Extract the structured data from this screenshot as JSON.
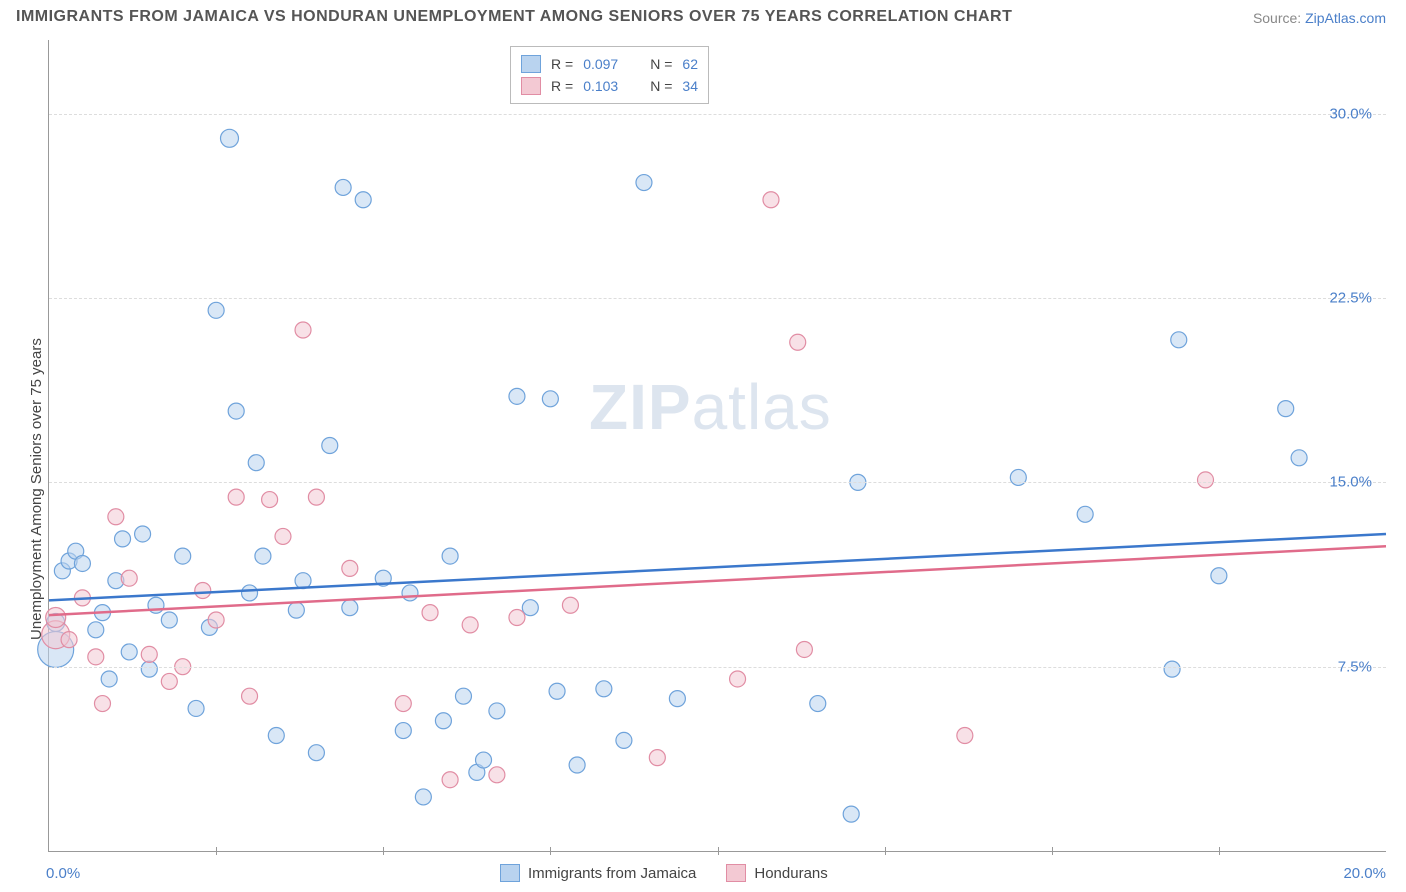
{
  "title": "IMMIGRANTS FROM JAMAICA VS HONDURAN UNEMPLOYMENT AMONG SENIORS OVER 75 YEARS CORRELATION CHART",
  "source_prefix": "Source: ",
  "source_name": "ZipAtlas.com",
  "ylabel": "Unemployment Among Seniors over 75 years",
  "watermark_zip": "ZIP",
  "watermark_atlas": "atlas",
  "chart": {
    "type": "scatter",
    "x_range": [
      0,
      20
    ],
    "y_range": [
      0,
      33
    ],
    "x_ticks_major": [
      0,
      20
    ],
    "x_ticks_minor": [
      2.5,
      5,
      7.5,
      10,
      12.5,
      15,
      17.5
    ],
    "x_tick_labels": {
      "0": "0.0%",
      "20": "20.0%"
    },
    "y_gridlines": [
      7.5,
      15,
      22.5,
      30
    ],
    "y_tick_labels": {
      "7.5": "7.5%",
      "15": "15.0%",
      "22.5": "22.5%",
      "30": "30.0%"
    },
    "background_color": "#ffffff",
    "grid_color": "#dddddd",
    "axis_color": "#999999",
    "tick_label_color": "#4a7fc9",
    "series": [
      {
        "name": "Immigrants from Jamaica",
        "fill_color": "#b9d3ef",
        "stroke_color": "#6fa3db",
        "line_color": "#3b78cc",
        "R": "0.097",
        "N": "62",
        "trend": {
          "x1": 0,
          "y1": 10.2,
          "x2": 20,
          "y2": 12.9
        },
        "points": [
          {
            "x": 0.1,
            "y": 8.2,
            "r": 18
          },
          {
            "x": 0.1,
            "y": 9.3,
            "r": 9
          },
          {
            "x": 0.2,
            "y": 11.4,
            "r": 8
          },
          {
            "x": 0.3,
            "y": 11.8,
            "r": 8
          },
          {
            "x": 0.4,
            "y": 12.2,
            "r": 8
          },
          {
            "x": 0.7,
            "y": 9.0,
            "r": 8
          },
          {
            "x": 0.8,
            "y": 9.7,
            "r": 8
          },
          {
            "x": 0.9,
            "y": 7.0,
            "r": 8
          },
          {
            "x": 1.0,
            "y": 11.0,
            "r": 8
          },
          {
            "x": 1.1,
            "y": 12.7,
            "r": 8
          },
          {
            "x": 1.2,
            "y": 8.1,
            "r": 8
          },
          {
            "x": 1.4,
            "y": 12.9,
            "r": 8
          },
          {
            "x": 1.5,
            "y": 7.4,
            "r": 8
          },
          {
            "x": 1.6,
            "y": 10.0,
            "r": 8
          },
          {
            "x": 1.8,
            "y": 9.4,
            "r": 8
          },
          {
            "x": 2.0,
            "y": 12.0,
            "r": 8
          },
          {
            "x": 2.2,
            "y": 5.8,
            "r": 8
          },
          {
            "x": 2.4,
            "y": 9.1,
            "r": 8
          },
          {
            "x": 2.5,
            "y": 22.0,
            "r": 8
          },
          {
            "x": 2.7,
            "y": 29.0,
            "r": 9
          },
          {
            "x": 2.8,
            "y": 17.9,
            "r": 8
          },
          {
            "x": 3.0,
            "y": 10.5,
            "r": 8
          },
          {
            "x": 3.1,
            "y": 15.8,
            "r": 8
          },
          {
            "x": 3.2,
            "y": 12.0,
            "r": 8
          },
          {
            "x": 3.4,
            "y": 4.7,
            "r": 8
          },
          {
            "x": 3.7,
            "y": 9.8,
            "r": 8
          },
          {
            "x": 4.0,
            "y": 4.0,
            "r": 8
          },
          {
            "x": 4.2,
            "y": 16.5,
            "r": 8
          },
          {
            "x": 4.4,
            "y": 27.0,
            "r": 8
          },
          {
            "x": 4.5,
            "y": 9.9,
            "r": 8
          },
          {
            "x": 4.7,
            "y": 26.5,
            "r": 8
          },
          {
            "x": 5.0,
            "y": 11.1,
            "r": 8
          },
          {
            "x": 5.3,
            "y": 4.9,
            "r": 8
          },
          {
            "x": 5.4,
            "y": 10.5,
            "r": 8
          },
          {
            "x": 5.6,
            "y": 2.2,
            "r": 8
          },
          {
            "x": 5.9,
            "y": 5.3,
            "r": 8
          },
          {
            "x": 6.0,
            "y": 12.0,
            "r": 8
          },
          {
            "x": 6.2,
            "y": 6.3,
            "r": 8
          },
          {
            "x": 6.4,
            "y": 3.2,
            "r": 8
          },
          {
            "x": 6.5,
            "y": 3.7,
            "r": 8
          },
          {
            "x": 6.7,
            "y": 5.7,
            "r": 8
          },
          {
            "x": 7.0,
            "y": 18.5,
            "r": 8
          },
          {
            "x": 7.2,
            "y": 9.9,
            "r": 8
          },
          {
            "x": 7.5,
            "y": 18.4,
            "r": 8
          },
          {
            "x": 7.6,
            "y": 6.5,
            "r": 8
          },
          {
            "x": 7.9,
            "y": 3.5,
            "r": 8
          },
          {
            "x": 8.3,
            "y": 6.6,
            "r": 8
          },
          {
            "x": 8.6,
            "y": 4.5,
            "r": 8
          },
          {
            "x": 8.9,
            "y": 27.2,
            "r": 8
          },
          {
            "x": 9.4,
            "y": 6.2,
            "r": 8
          },
          {
            "x": 11.5,
            "y": 6.0,
            "r": 8
          },
          {
            "x": 12.0,
            "y": 1.5,
            "r": 8
          },
          {
            "x": 12.1,
            "y": 15.0,
            "r": 8
          },
          {
            "x": 14.5,
            "y": 15.2,
            "r": 8
          },
          {
            "x": 15.5,
            "y": 13.7,
            "r": 8
          },
          {
            "x": 16.8,
            "y": 7.4,
            "r": 8
          },
          {
            "x": 16.9,
            "y": 20.8,
            "r": 8
          },
          {
            "x": 17.5,
            "y": 11.2,
            "r": 8
          },
          {
            "x": 18.5,
            "y": 18.0,
            "r": 8
          },
          {
            "x": 18.7,
            "y": 16.0,
            "r": 8
          },
          {
            "x": 0.5,
            "y": 11.7,
            "r": 8
          },
          {
            "x": 3.8,
            "y": 11.0,
            "r": 8
          }
        ]
      },
      {
        "name": "Hondurans",
        "fill_color": "#f3c9d3",
        "stroke_color": "#e18da4",
        "line_color": "#e06b8a",
        "R": "0.103",
        "N": "34",
        "trend": {
          "x1": 0,
          "y1": 9.6,
          "x2": 20,
          "y2": 12.4
        },
        "points": [
          {
            "x": 0.1,
            "y": 8.8,
            "r": 14
          },
          {
            "x": 0.1,
            "y": 9.5,
            "r": 10
          },
          {
            "x": 0.3,
            "y": 8.6,
            "r": 8
          },
          {
            "x": 0.5,
            "y": 10.3,
            "r": 8
          },
          {
            "x": 0.7,
            "y": 7.9,
            "r": 8
          },
          {
            "x": 1.0,
            "y": 13.6,
            "r": 8
          },
          {
            "x": 1.2,
            "y": 11.1,
            "r": 8
          },
          {
            "x": 1.5,
            "y": 8.0,
            "r": 8
          },
          {
            "x": 1.8,
            "y": 6.9,
            "r": 8
          },
          {
            "x": 2.0,
            "y": 7.5,
            "r": 8
          },
          {
            "x": 2.3,
            "y": 10.6,
            "r": 8
          },
          {
            "x": 2.8,
            "y": 14.4,
            "r": 8
          },
          {
            "x": 3.0,
            "y": 6.3,
            "r": 8
          },
          {
            "x": 3.3,
            "y": 14.3,
            "r": 8
          },
          {
            "x": 3.5,
            "y": 12.8,
            "r": 8
          },
          {
            "x": 3.8,
            "y": 21.2,
            "r": 8
          },
          {
            "x": 4.0,
            "y": 14.4,
            "r": 8
          },
          {
            "x": 4.5,
            "y": 11.5,
            "r": 8
          },
          {
            "x": 5.3,
            "y": 6.0,
            "r": 8
          },
          {
            "x": 5.7,
            "y": 9.7,
            "r": 8
          },
          {
            "x": 6.0,
            "y": 2.9,
            "r": 8
          },
          {
            "x": 6.3,
            "y": 9.2,
            "r": 8
          },
          {
            "x": 6.7,
            "y": 3.1,
            "r": 8
          },
          {
            "x": 7.0,
            "y": 9.5,
            "r": 8
          },
          {
            "x": 7.8,
            "y": 10.0,
            "r": 8
          },
          {
            "x": 9.1,
            "y": 3.8,
            "r": 8
          },
          {
            "x": 10.3,
            "y": 7.0,
            "r": 8
          },
          {
            "x": 10.8,
            "y": 26.5,
            "r": 8
          },
          {
            "x": 11.2,
            "y": 20.7,
            "r": 8
          },
          {
            "x": 11.3,
            "y": 8.2,
            "r": 8
          },
          {
            "x": 13.7,
            "y": 4.7,
            "r": 8
          },
          {
            "x": 17.3,
            "y": 15.1,
            "r": 8
          },
          {
            "x": 0.8,
            "y": 6.0,
            "r": 8
          },
          {
            "x": 2.5,
            "y": 9.4,
            "r": 8
          }
        ]
      }
    ]
  },
  "top_legend": {
    "rows": [
      {
        "series": 0,
        "R_label": "R =",
        "N_label": "N ="
      },
      {
        "series": 1,
        "R_label": "R =",
        "N_label": "N ="
      }
    ]
  },
  "bottom_legend": {
    "items": [
      {
        "series": 0
      },
      {
        "series": 1
      }
    ]
  }
}
